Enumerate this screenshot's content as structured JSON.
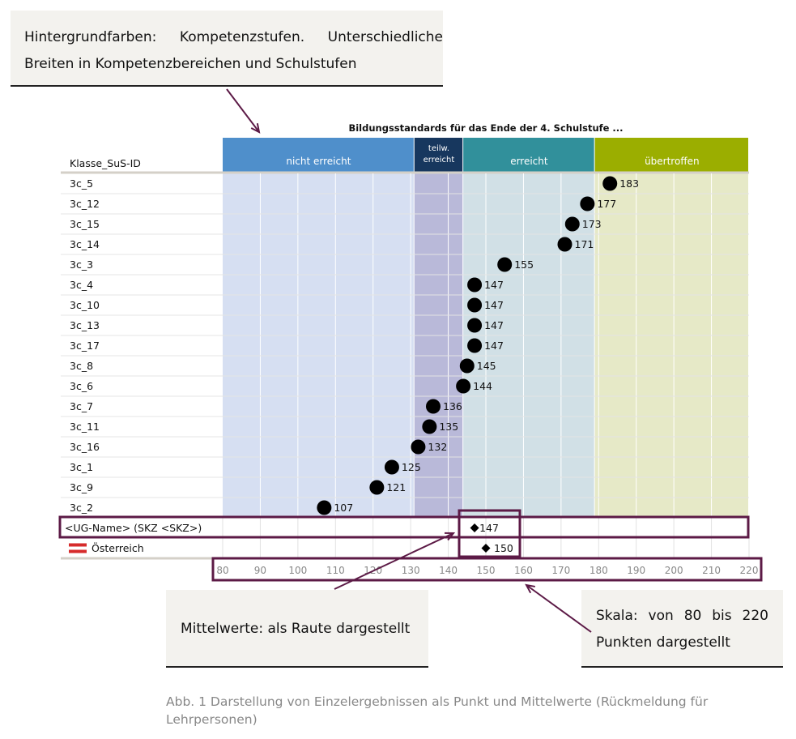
{
  "annotations": {
    "bands": "Hintergrundfarben: Kompetenzstufen. Unterschiedliche Breiten in Kompetenzbereichen und Schulstufen",
    "means": "Mittelwerte: als Raute dargestellt",
    "scale": "Skala: von 80 bis 220 Punkten dargestellt"
  },
  "caption": "Abb. 1  Darstellung von Einzelergebnissen als Punkt und Mittelwerte (Rückmeldung für Lehrpersonen)",
  "chart_data": {
    "type": "dot",
    "title": "Bildungsstandards für das Ende der 4. Schulstufe ...",
    "row_header": "Klasse_SuS-ID",
    "xlim": [
      80,
      220
    ],
    "xticks": [
      80,
      90,
      100,
      110,
      120,
      130,
      140,
      150,
      160,
      170,
      180,
      190,
      200,
      210,
      220
    ],
    "bands": [
      {
        "label": "nicht erreicht",
        "from": 80,
        "to": 131,
        "header_color": "#4f8fcb",
        "bg_color": "#d6dff2"
      },
      {
        "label": "teilw. erreicht",
        "from": 131,
        "to": 144,
        "header_color": "#17375e",
        "bg_color": "#b9b9d9"
      },
      {
        "label": "erreicht",
        "from": 144,
        "to": 179,
        "header_color": "#31909b",
        "bg_color": "#d1e0e6"
      },
      {
        "label": "übertroffen",
        "from": 179,
        "to": 220,
        "header_color": "#9bae00",
        "bg_color": "#e6e9c7"
      }
    ],
    "students": [
      {
        "id": "3c_5",
        "value": 183
      },
      {
        "id": "3c_12",
        "value": 177
      },
      {
        "id": "3c_15",
        "value": 173
      },
      {
        "id": "3c_14",
        "value": 171
      },
      {
        "id": "3c_3",
        "value": 155
      },
      {
        "id": "3c_4",
        "value": 147
      },
      {
        "id": "3c_10",
        "value": 147
      },
      {
        "id": "3c_13",
        "value": 147
      },
      {
        "id": "3c_17",
        "value": 147
      },
      {
        "id": "3c_8",
        "value": 145
      },
      {
        "id": "3c_6",
        "value": 144
      },
      {
        "id": "3c_7",
        "value": 136
      },
      {
        "id": "3c_11",
        "value": 135
      },
      {
        "id": "3c_16",
        "value": 132
      },
      {
        "id": "3c_1",
        "value": 125
      },
      {
        "id": "3c_9",
        "value": 121
      },
      {
        "id": "3c_2",
        "value": 107
      }
    ],
    "means": [
      {
        "label": "<UG-Name> (SKZ <SKZ>)",
        "value": 147
      },
      {
        "label": "Österreich",
        "value": 150,
        "flag": "austria-flag-icon"
      }
    ]
  },
  "colors": {
    "highlight": "#5c1a46"
  }
}
